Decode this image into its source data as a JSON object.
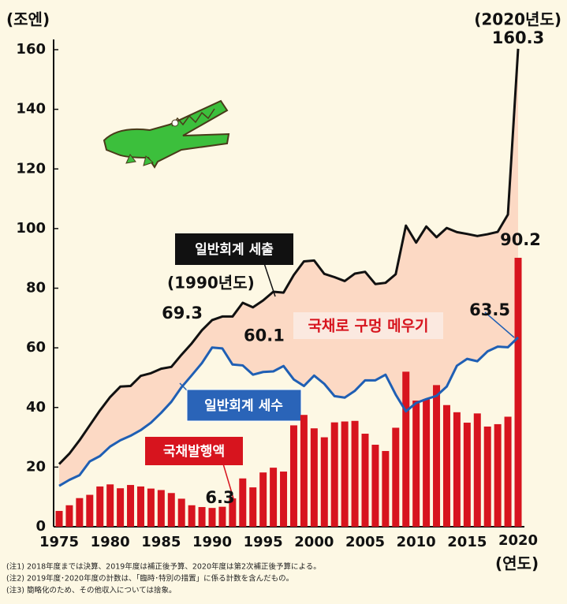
{
  "chart_data": {
    "type": "combo",
    "y_unit_label": "(조엔)",
    "x_unit_label": "(연도)",
    "x": [
      1975,
      1976,
      1977,
      1978,
      1979,
      1980,
      1981,
      1982,
      1983,
      1984,
      1985,
      1986,
      1987,
      1988,
      1989,
      1990,
      1991,
      1992,
      1993,
      1994,
      1995,
      1996,
      1997,
      1998,
      1999,
      2000,
      2001,
      2002,
      2003,
      2004,
      2005,
      2006,
      2007,
      2008,
      2009,
      2010,
      2011,
      2012,
      2013,
      2014,
      2015,
      2016,
      2017,
      2018,
      2019,
      2020
    ],
    "xlim": [
      1975,
      2020
    ],
    "xticks": [
      1975,
      1980,
      1985,
      1990,
      1995,
      2000,
      2005,
      2010,
      2015,
      2020
    ],
    "ylim": [
      0,
      160
    ],
    "yticks": [
      0,
      20,
      40,
      60,
      80,
      100,
      120,
      140,
      160
    ],
    "grid": false,
    "gap_fill_color": "#fcd9c4",
    "series": [
      {
        "name": "일반회계 세출",
        "type": "line",
        "color": "#111111",
        "values": [
          21,
          24.5,
          29,
          34,
          39,
          43.5,
          47,
          47.2,
          50.6,
          51.5,
          53,
          53.6,
          57.7,
          61.5,
          65.9,
          69.3,
          70.5,
          70.5,
          75.1,
          73.6,
          75.9,
          78.8,
          78.5,
          84.4,
          89,
          89.3,
          84.8,
          83.7,
          82.4,
          84.9,
          85.5,
          81.4,
          81.8,
          84.7,
          101,
          95.3,
          100.7,
          97.1,
          100.2,
          98.8,
          98.2,
          97.5,
          98.1,
          98.9,
          104.7,
          160.3
        ]
      },
      {
        "name": "일반회계 세수",
        "type": "line",
        "color": "#1f5fb4",
        "values": [
          13.7,
          15.7,
          17.3,
          21.9,
          23.7,
          26.9,
          29,
          30.5,
          32.4,
          34.9,
          38.2,
          41.9,
          46.8,
          50.8,
          54.9,
          60.1,
          59.8,
          54.4,
          54.1,
          51,
          51.9,
          52.1,
          53.9,
          49.4,
          47.2,
          50.7,
          47.9,
          43.8,
          43.3,
          45.6,
          49.1,
          49.1,
          51,
          44.3,
          38.7,
          41.5,
          42.8,
          43.9,
          47,
          54,
          56.3,
          55.5,
          58.8,
          60.4,
          60.2,
          63.5
        ]
      },
      {
        "name": "국채발행액",
        "type": "bar",
        "color": "#d7141e",
        "values": [
          5.3,
          7.2,
          9.6,
          10.7,
          13.5,
          14.2,
          12.9,
          14,
          13.5,
          12.8,
          12.3,
          11.3,
          9.4,
          7.2,
          6.6,
          6.3,
          6.7,
          9.5,
          16.2,
          13.2,
          18.2,
          19.8,
          18.5,
          34,
          37.5,
          33,
          30,
          35,
          35.3,
          35.5,
          31.2,
          27.5,
          25.4,
          33.2,
          52,
          42.3,
          42.8,
          47.5,
          40.8,
          38.4,
          34.9,
          38,
          33.6,
          34.4,
          36.9,
          90.2
        ]
      }
    ],
    "annotations": [
      "(2020년도)",
      "(1990년도)",
      "국채로 구멍 메우기"
    ],
    "notes": [
      "(注1) 2018年度までは決算、2019年度は補正後予算、2020年度は第2次補正後予算による。",
      "(注2) 2019年度･2020年度の計数は、「臨時･特別の措置」に係る計数を含んだもの。",
      "(注3) 簡略化のため、その他収入については捨象。"
    ]
  }
}
